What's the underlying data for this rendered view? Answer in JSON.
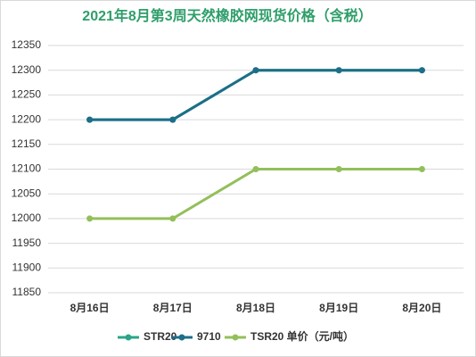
{
  "chart_data": {
    "type": "line",
    "title": "2021年8月第3周天然橡胶网现货价格（含税）",
    "categories": [
      "8月16日",
      "8月17日",
      "8月18日",
      "8月19日",
      "8月20日"
    ],
    "series": [
      {
        "name": "STR20",
        "color": "#2aa58a",
        "values": [
          12200,
          12200,
          12300,
          12300,
          12300
        ]
      },
      {
        "name": "9710",
        "color": "#1d6e88",
        "values": [
          12200,
          12200,
          12300,
          12300,
          12300
        ]
      },
      {
        "name": "TSR20 单价（元/吨）",
        "color": "#93bf5a",
        "values": [
          12000,
          12000,
          12100,
          12100,
          12100
        ]
      }
    ],
    "ylim": [
      11850,
      12350
    ],
    "yticks": [
      11850,
      11900,
      11950,
      12000,
      12050,
      12100,
      12150,
      12200,
      12250,
      12300,
      12350
    ],
    "grid": true
  }
}
